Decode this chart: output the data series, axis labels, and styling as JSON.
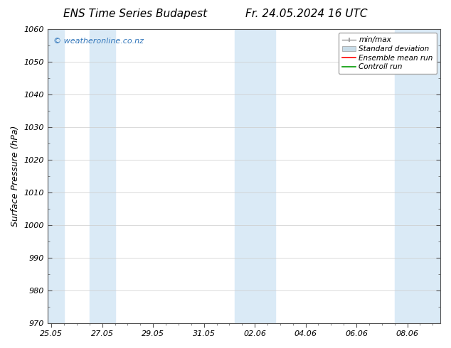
{
  "title": "ENS Time Series Budapest",
  "title_right": "Fr. 24.05.2024 16 UTC",
  "ylabel": "Surface Pressure (hPa)",
  "ylim": [
    970,
    1060
  ],
  "yticks": [
    970,
    980,
    990,
    1000,
    1010,
    1020,
    1030,
    1040,
    1050,
    1060
  ],
  "xtick_labels": [
    "25.05",
    "27.05",
    "29.05",
    "31.05",
    "02.06",
    "04.06",
    "06.06",
    "08.06"
  ],
  "xtick_positions": [
    0,
    2,
    4,
    6,
    8,
    10,
    12,
    14
  ],
  "xlim": [
    -0.15,
    15.3
  ],
  "shaded_bands": [
    {
      "x_start": -0.15,
      "x_end": 0.5
    },
    {
      "x_start": 1.5,
      "x_end": 2.5
    },
    {
      "x_start": 7.2,
      "x_end": 8.8
    },
    {
      "x_start": 13.5,
      "x_end": 15.3
    }
  ],
  "band_color": "#daeaf6",
  "watermark_text": "© weatheronline.co.nz",
  "watermark_color": "#3377bb",
  "legend_labels": [
    "min/max",
    "Standard deviation",
    "Ensemble mean run",
    "Controll run"
  ],
  "legend_line_color": "#999999",
  "legend_std_color": "#c8dce8",
  "legend_ens_color": "#ff0000",
  "legend_ctrl_color": "#009900",
  "background_color": "#ffffff",
  "plot_bg_color": "#ffffff",
  "font_color": "#000000",
  "border_color": "#555555",
  "title_fontsize": 11,
  "tick_fontsize": 8,
  "ylabel_fontsize": 9,
  "legend_fontsize": 7.5
}
